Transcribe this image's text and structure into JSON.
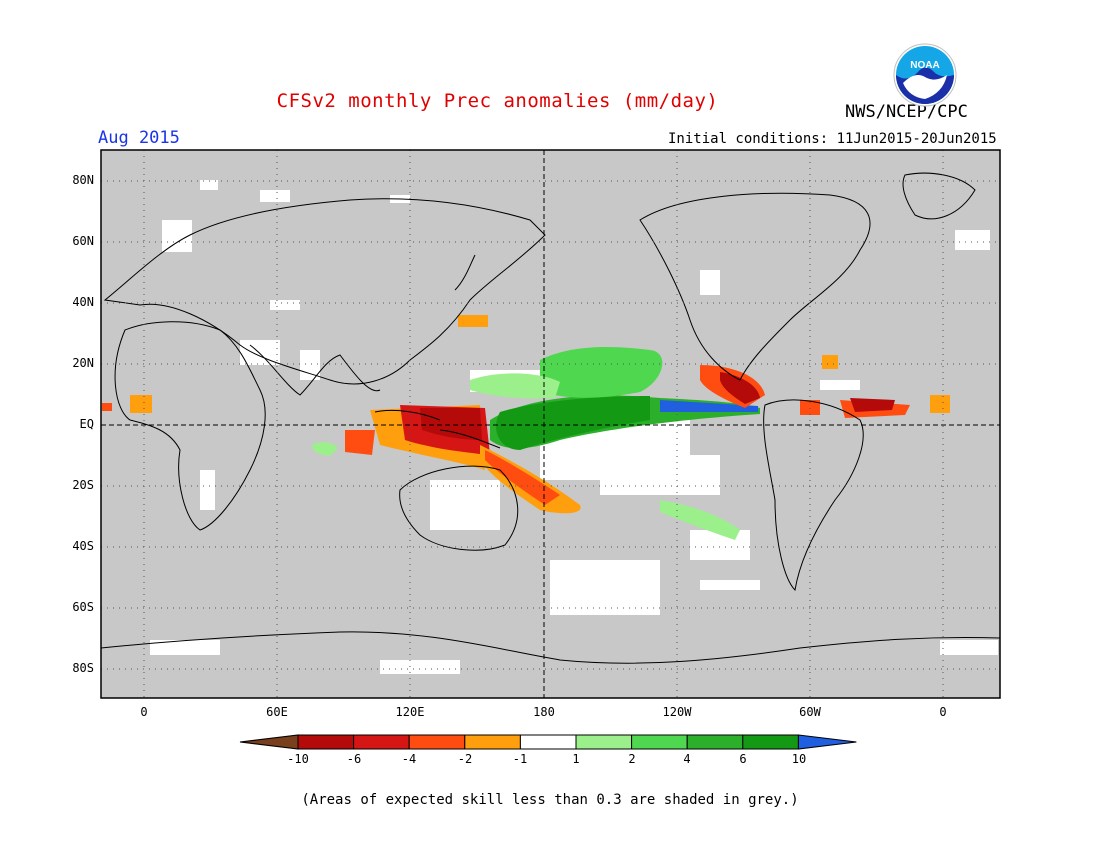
{
  "header": {
    "title": "CFSv2 monthly Prec anomalies (mm/day)",
    "agency": "NWS/NCEP/CPC",
    "month": "Aug 2015",
    "initial_conditions": "Initial conditions: 11Jun2015-20Jun2015"
  },
  "logo": {
    "text": "NOAA",
    "icon": "noaa-logo-icon"
  },
  "axes": {
    "lat_labels": [
      "80N",
      "60N",
      "40N",
      "20N",
      "EQ",
      "20S",
      "40S",
      "60S",
      "80S"
    ],
    "lon_labels": [
      "0",
      "60E",
      "120E",
      "180",
      "120W",
      "60W",
      "0"
    ]
  },
  "colorbar": {
    "labels": [
      "-10",
      "-6",
      "-4",
      "-2",
      "-1",
      "1",
      "2",
      "4",
      "6",
      "10"
    ],
    "colors": [
      "#7a3f1d",
      "#b40a0a",
      "#d61515",
      "#ff4d12",
      "#ff9f0d",
      "#ffffff",
      "#9cf08c",
      "#4fd84f",
      "#2cb02c",
      "#149914",
      "#1f5fe0"
    ]
  },
  "footnote": "(Areas of expected skill less than 0.3 are shaded in grey.)",
  "colors": {
    "skill_grey": "#c8c8c8",
    "title_red": "#e00000",
    "month_blue": "#1a34e8"
  }
}
